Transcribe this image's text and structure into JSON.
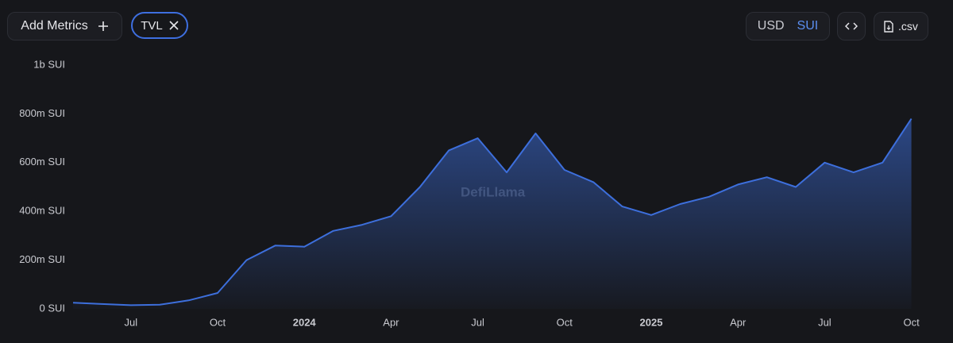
{
  "toolbar": {
    "add_metrics": "Add Metrics",
    "metric": "TVL",
    "currencies": [
      "USD",
      "SUI"
    ],
    "active_currency": "SUI",
    "csv": ".csv"
  },
  "chart_data": {
    "type": "line",
    "watermark": "DefiLlama",
    "x": [
      "2023-05",
      "2023-06",
      "2023-07",
      "2023-08",
      "2023-09",
      "2023-10",
      "2023-11",
      "2023-12",
      "2024-01",
      "2024-02",
      "2024-03",
      "2024-04",
      "2024-05",
      "2024-06",
      "2024-07",
      "2024-08",
      "2024-09",
      "2024-10",
      "2024-11",
      "2024-12",
      "2025-01",
      "2025-02",
      "2025-03",
      "2025-04",
      "2025-05",
      "2025-06",
      "2025-07",
      "2025-08",
      "2025-09",
      "2025-10"
    ],
    "series": [
      {
        "name": "TVL",
        "color": "#3d6fdc",
        "values": [
          25000000,
          20000000,
          15000000,
          17000000,
          35000000,
          65000000,
          200000000,
          260000000,
          255000000,
          320000000,
          345000000,
          380000000,
          500000000,
          650000000,
          700000000,
          560000000,
          720000000,
          570000000,
          520000000,
          420000000,
          385000000,
          430000000,
          460000000,
          510000000,
          540000000,
          500000000,
          600000000,
          560000000,
          600000000,
          780000000
        ]
      }
    ],
    "xlim": [
      "2023-05",
      "2025-11"
    ],
    "xticks": [
      {
        "value": "2023-07",
        "label": "Jul"
      },
      {
        "value": "2023-10",
        "label": "Oct"
      },
      {
        "value": "2024-01",
        "label": "2024"
      },
      {
        "value": "2024-04",
        "label": "Apr"
      },
      {
        "value": "2024-07",
        "label": "Jul"
      },
      {
        "value": "2024-10",
        "label": "Oct"
      },
      {
        "value": "2025-01",
        "label": "2025"
      },
      {
        "value": "2025-04",
        "label": "Apr"
      },
      {
        "value": "2025-07",
        "label": "Jul"
      },
      {
        "value": "2025-10",
        "label": "Oct"
      }
    ],
    "ylim": [
      0,
      1000000000
    ],
    "yticks": [
      {
        "value": 0,
        "label": "0 SUI"
      },
      {
        "value": 200000000,
        "label": "200m SUI"
      },
      {
        "value": 400000000,
        "label": "400m SUI"
      },
      {
        "value": 600000000,
        "label": "600m SUI"
      },
      {
        "value": 800000000,
        "label": "800m SUI"
      },
      {
        "value": 1000000000,
        "label": "1b SUI"
      }
    ],
    "grid": false
  }
}
